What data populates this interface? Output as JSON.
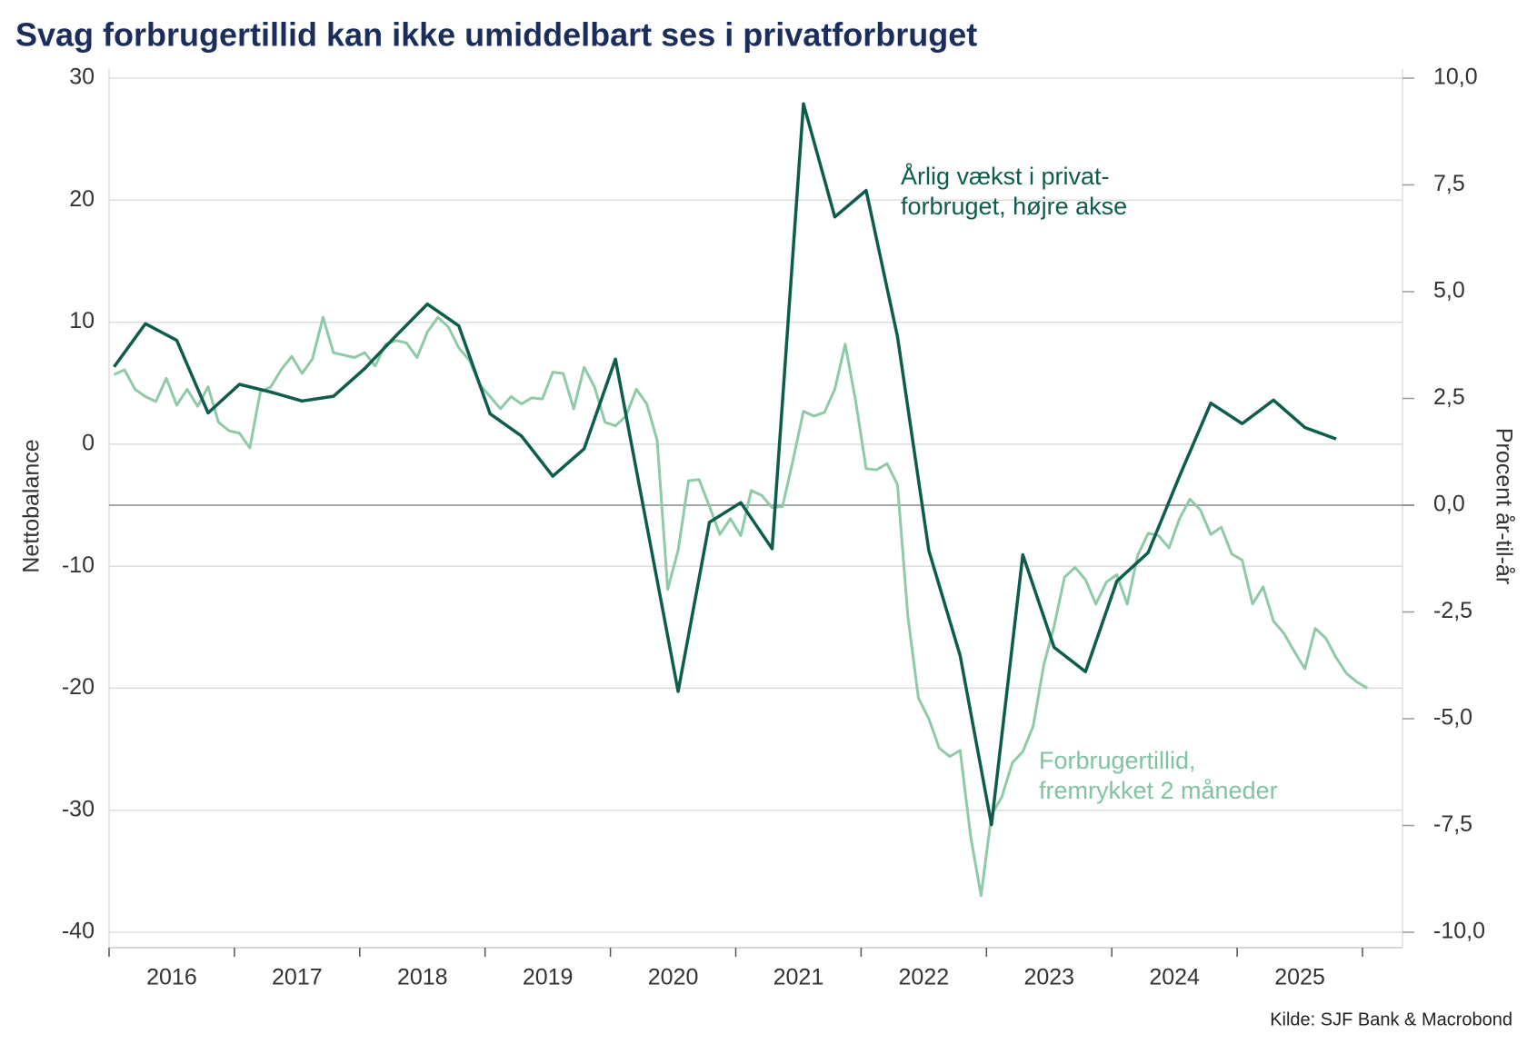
{
  "chart_data": {
    "type": "line",
    "title": "Svag forbrugertillid kan ikke umiddelbart ses i privatforbruget",
    "source": "Kilde: SJF Bank & Macrobond",
    "ylabel": "Nettobalance",
    "y2label": "Procent år-til-år",
    "xlim": [
      2016,
      2026
    ],
    "xticks": [
      2016,
      2017,
      2018,
      2019,
      2020,
      2021,
      2022,
      2023,
      2024,
      2025,
      2026
    ],
    "x_labels": [
      "2016",
      "2017",
      "2018",
      "2019",
      "2020",
      "2021",
      "2022",
      "2023",
      "2024",
      "2025"
    ],
    "ylim": [
      -40,
      30
    ],
    "yticks": [
      -40,
      -30,
      -20,
      -10,
      0,
      10,
      20,
      30
    ],
    "y2lim": [
      -10,
      10
    ],
    "y2ticks": [
      {
        "value": -10,
        "label": "-10,0"
      },
      {
        "value": -7.5,
        "label": "-7,5"
      },
      {
        "value": -5,
        "label": "-5,0"
      },
      {
        "value": -2.5,
        "label": "-2,5"
      },
      {
        "value": 0,
        "label": "0,0"
      },
      {
        "value": 2.5,
        "label": "2,5"
      },
      {
        "value": 5,
        "label": "5,0"
      },
      {
        "value": 7.5,
        "label": "7,5"
      },
      {
        "value": 10,
        "label": "10,0"
      }
    ],
    "grid": true,
    "series": [
      {
        "color": "#8fcaa8",
        "x": [
          2016.04,
          2016.123,
          2016.207,
          2016.29,
          2016.373,
          2016.457,
          2016.54,
          2016.623,
          2016.707,
          2016.79,
          2016.873,
          2016.957,
          2017.04,
          2017.123,
          2017.207,
          2017.29,
          2017.373,
          2017.457,
          2017.54,
          2017.623,
          2017.707,
          2017.79,
          2017.873,
          2017.957,
          2018.04,
          2018.123,
          2018.207,
          2018.29,
          2018.373,
          2018.457,
          2018.54,
          2018.623,
          2018.707,
          2018.79,
          2018.873,
          2018.957,
          2019.04,
          2019.123,
          2019.207,
          2019.29,
          2019.373,
          2019.457,
          2019.54,
          2019.623,
          2019.707,
          2019.79,
          2019.873,
          2019.957,
          2020.04,
          2020.123,
          2020.207,
          2020.29,
          2020.373,
          2020.457,
          2020.54,
          2020.623,
          2020.707,
          2020.79,
          2020.873,
          2020.957,
          2021.04,
          2021.123,
          2021.207,
          2021.29,
          2021.373,
          2021.457,
          2021.54,
          2021.623,
          2021.707,
          2021.79,
          2021.873,
          2021.957,
          2022.04,
          2022.123,
          2022.207,
          2022.29,
          2022.373,
          2022.457,
          2022.54,
          2022.623,
          2022.707,
          2022.79,
          2022.873,
          2022.957,
          2023.04,
          2023.123,
          2023.207,
          2023.29,
          2023.373,
          2023.457,
          2023.54,
          2023.623,
          2023.707,
          2023.79,
          2023.873,
          2023.957,
          2024.04,
          2024.123,
          2024.207,
          2024.29,
          2024.373,
          2024.457,
          2024.54,
          2024.623,
          2024.707,
          2024.79,
          2024.873,
          2024.957,
          2025.04,
          2025.123,
          2025.207,
          2025.29,
          2025.373,
          2025.457,
          2025.54,
          2025.623,
          2025.707,
          2025.79,
          2025.873,
          2025.957,
          2026.04
        ],
        "values": [
          5.7,
          6.1,
          4.5,
          3.9,
          3.5,
          5.4,
          3.2,
          4.5,
          3.1,
          4.7,
          1.8,
          1.1,
          0.9,
          -0.3,
          4.3,
          4.7,
          6.1,
          7.2,
          5.8,
          7.0,
          10.4,
          7.5,
          7.3,
          7.1,
          7.5,
          6.4,
          8.2,
          8.5,
          8.3,
          7.1,
          9.2,
          10.4,
          9.6,
          7.9,
          6.9,
          4.9,
          3.9,
          2.9,
          3.9,
          3.3,
          3.8,
          3.7,
          5.9,
          5.8,
          2.9,
          6.3,
          4.7,
          1.8,
          1.5,
          2.3,
          4.5,
          3.3,
          0.3,
          -11.9,
          -8.7,
          -3.0,
          -2.9,
          -5.1,
          -7.4,
          -6.1,
          -7.5,
          -3.8,
          -4.2,
          -5.2,
          -5.1,
          -1.3,
          2.7,
          2.3,
          2.6,
          4.5,
          8.2,
          3.5,
          -2.0,
          -2.1,
          -1.6,
          -3.3,
          -14.1,
          -20.8,
          -22.5,
          -24.9,
          -25.6,
          -25.1,
          -32.1,
          -37.0,
          -30.4,
          -28.9,
          -26.1,
          -25.2,
          -23.1,
          -18.1,
          -14.9,
          -10.9,
          -10.1,
          -11.1,
          -13.1,
          -11.3,
          -10.7,
          -13.1,
          -9.1,
          -7.3,
          -7.5,
          -8.5,
          -6.1,
          -4.5,
          -5.4,
          -7.4,
          -6.8,
          -9.0,
          -9.5,
          -13.1,
          -11.7,
          -14.5,
          -15.5,
          -17.0,
          -18.4,
          -15.1,
          -15.9,
          -17.5,
          -18.8,
          -19.5,
          -20.0
        ]
      },
      {
        "color": "#0e5c4c",
        "axis": "y2",
        "x": [
          2016.04,
          2016.29,
          2016.54,
          2016.79,
          2017.04,
          2017.29,
          2017.54,
          2017.79,
          2018.04,
          2018.29,
          2018.54,
          2018.79,
          2019.04,
          2019.29,
          2019.54,
          2019.79,
          2020.04,
          2020.29,
          2020.54,
          2020.79,
          2021.04,
          2021.29,
          2021.54,
          2021.79,
          2022.04,
          2022.29,
          2022.54,
          2022.79,
          2023.04,
          2023.29,
          2023.54,
          2023.79,
          2024.04,
          2024.29,
          2024.54,
          2024.79,
          2025.04,
          2025.29,
          2025.54,
          2025.79
        ],
        "values": [
          3.24,
          4.25,
          3.86,
          2.16,
          2.83,
          2.65,
          2.44,
          2.55,
          3.2,
          3.97,
          4.71,
          4.2,
          2.14,
          1.62,
          0.68,
          1.32,
          3.42,
          -0.47,
          -4.36,
          -0.4,
          0.06,
          -1.02,
          9.4,
          6.75,
          7.37,
          3.95,
          -1.06,
          -3.52,
          -7.48,
          -1.16,
          -3.33,
          -3.9,
          -1.78,
          -1.11,
          0.68,
          2.39,
          1.91,
          2.46,
          1.82,
          1.55
        ]
      }
    ],
    "annotations": [
      {
        "lines": [
          "Årlig vækst i privat-",
          "forbruget, højre akse"
        ],
        "color": "#0e5c4c"
      },
      {
        "lines": [
          "Forbrugertillid,",
          "fremrykket 2 måneder"
        ],
        "color": "#7fc4a0"
      }
    ]
  }
}
